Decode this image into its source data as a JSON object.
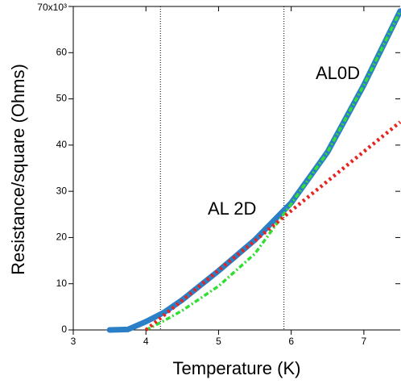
{
  "chart_data": {
    "type": "line",
    "xlabel": "Temperature (K)",
    "ylabel": "Resistance/square (Ohms)",
    "x": [
      3.5,
      3.75,
      4,
      4.25,
      4.5,
      5,
      5.5,
      6,
      6.5,
      7,
      7.5
    ],
    "series": [
      {
        "color": "#2b7fc6",
        "values": [
          0,
          100,
          1800,
          3800,
          6500,
          12800,
          19500,
          27500,
          38500,
          53000,
          69000
        ]
      },
      {
        "name": "AL0D",
        "color": "#33dd33",
        "values": [
          null,
          null,
          0,
          2000,
          4200,
          9500,
          16500,
          27300,
          38500,
          53000,
          69000
        ]
      },
      {
        "name": "AL 2D",
        "color": "#e8231d",
        "values": [
          null,
          null,
          0,
          3200,
          6400,
          12900,
          19300,
          25800,
          32200,
          38600,
          45000
        ]
      }
    ],
    "vlines": [
      4.2,
      5.9
    ],
    "xlim": [
      3,
      7.5
    ],
    "ylim": [
      0,
      70000
    ],
    "xticks": [
      3,
      4,
      5,
      6,
      7
    ],
    "yticks": [
      0,
      {
        "value": 10000,
        "label": "10"
      },
      {
        "value": 20000,
        "label": "20"
      },
      {
        "value": 30000,
        "label": "30"
      },
      {
        "value": 40000,
        "label": "40"
      },
      {
        "value": 50000,
        "label": "50"
      },
      {
        "value": 60000,
        "label": "60"
      },
      {
        "value": 70000,
        "label": "70x10³"
      }
    ],
    "grid": false
  }
}
